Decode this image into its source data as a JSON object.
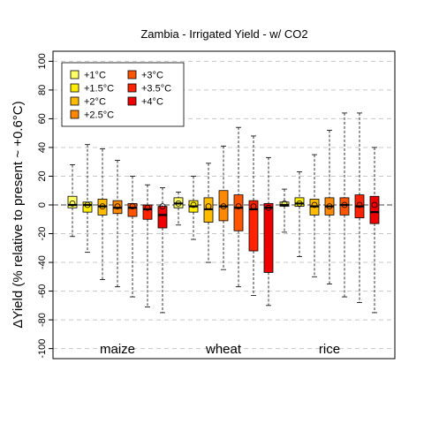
{
  "chart_data": {
    "type": "boxplot",
    "title": "Zambia - Irrigated Yield - w/ CO2",
    "ylabel": "ΔYield (% relative to present ~ +0.6°C)",
    "xlabel": "",
    "ylim": [
      -107,
      107
    ],
    "yticks": [
      -100,
      -80,
      -60,
      -40,
      -20,
      0,
      20,
      40,
      60,
      80,
      100
    ],
    "grid": "horizontal-dashed",
    "legend_position": "top-left",
    "series": [
      {
        "name": "+1°C",
        "color": "#ffff66"
      },
      {
        "name": "+1.5°C",
        "color": "#ffee00"
      },
      {
        "name": "+2°C",
        "color": "#ffbb00"
      },
      {
        "name": "+2.5°C",
        "color": "#ff8800"
      },
      {
        "name": "+3°C",
        "color": "#ff5500"
      },
      {
        "name": "+3.5°C",
        "color": "#ff2200"
      },
      {
        "name": "+4°C",
        "color": "#ee0000"
      }
    ],
    "groups": [
      {
        "label": "maize",
        "boxes": [
          {
            "series": "+1°C",
            "whisker_low": -22,
            "q1": -2,
            "median": 0,
            "q3": 6,
            "whisker_high": 28,
            "mean": 1
          },
          {
            "series": "+1.5°C",
            "whisker_low": -33,
            "q1": -5,
            "median": 0,
            "q3": 2,
            "whisker_high": 42,
            "mean": 0
          },
          {
            "series": "+2°C",
            "whisker_low": -52,
            "q1": -7,
            "median": -1,
            "q3": 4,
            "whisker_high": 39,
            "mean": -1
          },
          {
            "series": "+2.5°C",
            "whisker_low": -57,
            "q1": -6,
            "median": -2,
            "q3": 3,
            "whisker_high": 31,
            "mean": -1
          },
          {
            "series": "+3°C",
            "whisker_low": -64,
            "q1": -8,
            "median": -2,
            "q3": 1,
            "whisker_high": 20,
            "mean": -1
          },
          {
            "series": "+3.5°C",
            "whisker_low": -71,
            "q1": -10,
            "median": -3,
            "q3": 0,
            "whisker_high": 14,
            "mean": -2
          },
          {
            "series": "+4°C",
            "whisker_low": -75,
            "q1": -16,
            "median": -7,
            "q3": -1,
            "whisker_high": 12,
            "mean": -1
          }
        ]
      },
      {
        "label": "wheat",
        "boxes": [
          {
            "series": "+1°C",
            "whisker_low": -14,
            "q1": -2,
            "median": 1,
            "q3": 5,
            "whisker_high": 9,
            "mean": 1
          },
          {
            "series": "+1.5°C",
            "whisker_low": -24,
            "q1": -5,
            "median": -1,
            "q3": 3,
            "whisker_high": 20,
            "mean": 0
          },
          {
            "series": "+2°C",
            "whisker_low": -40,
            "q1": -12,
            "median": -3,
            "q3": 5,
            "whisker_high": 29,
            "mean": -1
          },
          {
            "series": "+2.5°C",
            "whisker_low": -45,
            "q1": -11,
            "median": -1,
            "q3": 10,
            "whisker_high": 41,
            "mean": -1
          },
          {
            "series": "+3°C",
            "whisker_low": -57,
            "q1": -18,
            "median": -2,
            "q3": 7,
            "whisker_high": 54,
            "mean": -1
          },
          {
            "series": "+3.5°C",
            "whisker_low": -63,
            "q1": -32,
            "median": -3,
            "q3": 3,
            "whisker_high": 48,
            "mean": -1
          },
          {
            "series": "+4°C",
            "whisker_low": -70,
            "q1": -47,
            "median": -2,
            "q3": 1,
            "whisker_high": 33,
            "mean": -2
          }
        ]
      },
      {
        "label": "rice",
        "boxes": [
          {
            "series": "+1°C",
            "whisker_low": -19,
            "q1": -1,
            "median": 0,
            "q3": 2,
            "whisker_high": 11,
            "mean": 1
          },
          {
            "series": "+1.5°C",
            "whisker_low": -36,
            "q1": -1,
            "median": 1,
            "q3": 5,
            "whisker_high": 23,
            "mean": 1
          },
          {
            "series": "+2°C",
            "whisker_low": -50,
            "q1": -7,
            "median": -1,
            "q3": 4,
            "whisker_high": 35,
            "mean": 0
          },
          {
            "series": "+2.5°C",
            "whisker_low": -55,
            "q1": -7,
            "median": -1,
            "q3": 5,
            "whisker_high": 52,
            "mean": -1
          },
          {
            "series": "+3°C",
            "whisker_low": -64,
            "q1": -7,
            "median": 0,
            "q3": 5,
            "whisker_high": 64,
            "mean": 0
          },
          {
            "series": "+3.5°C",
            "whisker_low": -68,
            "q1": -9,
            "median": -1,
            "q3": 7,
            "whisker_high": 64,
            "mean": 0
          },
          {
            "series": "+4°C",
            "whisker_low": -75,
            "q1": -13,
            "median": -5,
            "q3": 6,
            "whisker_high": 40,
            "mean": 0
          }
        ]
      }
    ]
  }
}
